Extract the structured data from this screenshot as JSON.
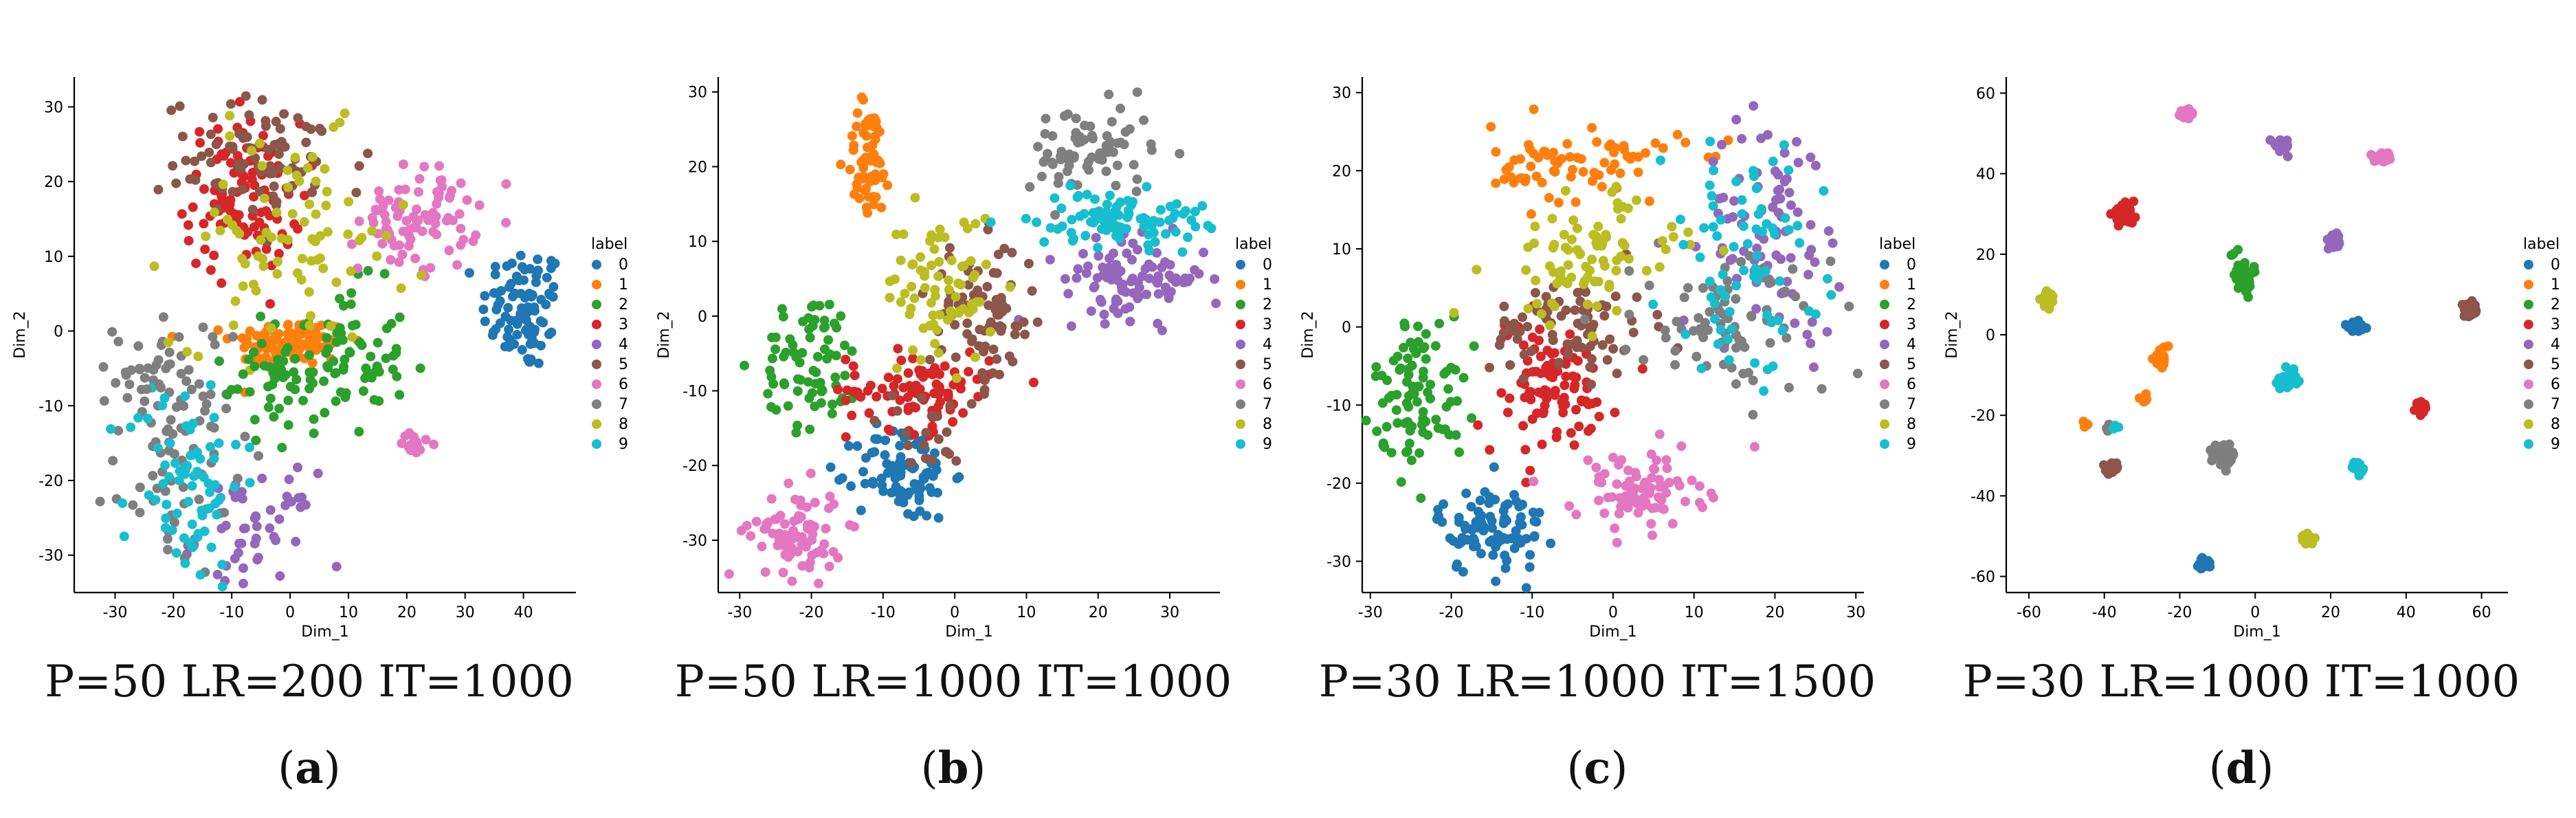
{
  "legend_title": "label",
  "palette": [
    "#1f77b4",
    "#ff7f0e",
    "#2ca02c",
    "#d62728",
    "#9467bd",
    "#8c564b",
    "#e377c2",
    "#7f7f7f",
    "#bcbd22",
    "#17becf"
  ],
  "chart_data": [
    {
      "type": "scatter",
      "caption": "P=50 LR=200 IT=1000",
      "letter": "a",
      "xlabel": "Dim_1",
      "ylabel": "Dim_2",
      "xlim": [
        -37,
        49
      ],
      "ylim": [
        -35,
        34
      ],
      "xticks": [
        -30,
        -20,
        -10,
        0,
        10,
        20,
        30,
        40
      ],
      "yticks": [
        -30,
        -20,
        -10,
        0,
        10,
        20,
        30
      ],
      "legend": [
        "0",
        "1",
        "2",
        "3",
        "4",
        "5",
        "6",
        "7",
        "8",
        "9"
      ],
      "clusters": [
        {
          "label": 0,
          "cx": 40,
          "cy": 3,
          "sx": 3.6,
          "sy": 4.2,
          "n": 90
        },
        {
          "label": 1,
          "cx": 0,
          "cy": -1.5,
          "sx": 5,
          "sy": 1.6,
          "n": 110
        },
        {
          "label": 2,
          "cx": 8,
          "cy": -4,
          "sx": 6,
          "sy": 5,
          "n": 90
        },
        {
          "label": 3,
          "cx": -8,
          "cy": 18,
          "sx": 5,
          "sy": 5,
          "n": 110
        },
        {
          "label": 4,
          "cx": -6,
          "cy": -27,
          "sx": 5,
          "sy": 4,
          "n": 55
        },
        {
          "label": 5,
          "cx": -4,
          "cy": 23,
          "sx": 9,
          "sy": 4,
          "n": 85
        },
        {
          "label": 6,
          "cx": 22,
          "cy": 15,
          "sx": 5,
          "sy": 3.5,
          "n": 85
        },
        {
          "label": 7,
          "cx": -20,
          "cy": -15,
          "sx": 5,
          "sy": 9,
          "n": 90
        },
        {
          "label": 8,
          "cx": 0,
          "cy": 12,
          "sx": 10,
          "sy": 7,
          "n": 85
        },
        {
          "label": 9,
          "cx": -18,
          "cy": -20,
          "sx": 5,
          "sy": 7,
          "n": 75
        },
        {
          "label": 6,
          "cx": 22,
          "cy": -15,
          "sx": 1.5,
          "sy": 1.2,
          "n": 14
        },
        {
          "label": 7,
          "cx": -25,
          "cy": -5,
          "sx": 2,
          "sy": 2,
          "n": 18
        },
        {
          "label": 2,
          "cx": -3,
          "cy": -8,
          "sx": 4,
          "sy": 3,
          "n": 25
        }
      ]
    },
    {
      "type": "scatter",
      "caption": "P=50 LR=1000 IT=1000",
      "letter": "b",
      "xlabel": "Dim_1",
      "ylabel": "Dim_2",
      "xlim": [
        -33,
        37
      ],
      "ylim": [
        -37,
        32
      ],
      "xticks": [
        -30,
        -20,
        -10,
        0,
        10,
        20,
        30
      ],
      "yticks": [
        -30,
        -20,
        -10,
        0,
        10,
        20,
        30
      ],
      "legend": [
        "0",
        "1",
        "2",
        "3",
        "4",
        "5",
        "6",
        "7",
        "8",
        "9"
      ],
      "clusters": [
        {
          "label": 0,
          "cx": -7,
          "cy": -21,
          "sx": 3.3,
          "sy": 3.2,
          "n": 90
        },
        {
          "label": 1,
          "cx": -12,
          "cy": 21,
          "sx": 1.6,
          "sy": 4,
          "n": 65
        },
        {
          "label": 2,
          "cx": -20,
          "cy": -6,
          "sx": 3.5,
          "sy": 4.5,
          "n": 75
        },
        {
          "label": 3,
          "cx": -5,
          "cy": -10,
          "sx": 5,
          "sy": 2.6,
          "n": 90
        },
        {
          "label": 4,
          "cx": 25,
          "cy": 5,
          "sx": 5,
          "sy": 2.6,
          "n": 100
        },
        {
          "label": 5,
          "cx": 4,
          "cy": 0,
          "sx": 3.8,
          "sy": 5,
          "n": 85
        },
        {
          "label": 6,
          "cx": -22,
          "cy": -29,
          "sx": 3.2,
          "sy": 3,
          "n": 80
        },
        {
          "label": 7,
          "cx": 19,
          "cy": 22,
          "sx": 4.3,
          "sy": 3.2,
          "n": 75
        },
        {
          "label": 8,
          "cx": -2,
          "cy": 4,
          "sx": 3.8,
          "sy": 5,
          "n": 75
        },
        {
          "label": 9,
          "cx": 23,
          "cy": 13,
          "sx": 6,
          "sy": 1.8,
          "n": 95
        },
        {
          "label": 5,
          "cx": -5,
          "cy": -15,
          "sx": 3,
          "sy": 3,
          "n": 20
        }
      ]
    },
    {
      "type": "scatter",
      "caption": "P=30 LR=1000 IT=1500",
      "letter": "c",
      "xlabel": "Dim_1",
      "ylabel": "Dim_2",
      "xlim": [
        -31,
        31
      ],
      "ylim": [
        -34,
        32
      ],
      "xticks": [
        -30,
        -20,
        -10,
        0,
        10,
        20,
        30
      ],
      "yticks": [
        -30,
        -20,
        -10,
        0,
        10,
        20,
        30
      ],
      "legend": [
        "0",
        "1",
        "2",
        "3",
        "4",
        "5",
        "6",
        "7",
        "8",
        "9"
      ],
      "clusters": [
        {
          "label": 0,
          "cx": -15,
          "cy": -26,
          "sx": 3.3,
          "sy": 2.8,
          "n": 95
        },
        {
          "label": 1,
          "cx": -3,
          "cy": 21,
          "sx": 6,
          "sy": 2.5,
          "n": 75
        },
        {
          "label": 2,
          "cx": -24,
          "cy": -8,
          "sx": 2.8,
          "sy": 4.8,
          "n": 90
        },
        {
          "label": 3,
          "cx": -8,
          "cy": -8,
          "sx": 4.2,
          "sy": 4.5,
          "n": 95
        },
        {
          "label": 4,
          "cx": 20,
          "cy": 13,
          "sx": 4.2,
          "sy": 7,
          "n": 85
        },
        {
          "label": 5,
          "cx": -5,
          "cy": 0,
          "sx": 5,
          "sy": 3.2,
          "n": 80
        },
        {
          "label": 6,
          "cx": 3,
          "cy": -21,
          "sx": 4,
          "sy": 2.6,
          "n": 85
        },
        {
          "label": 7,
          "cx": 15,
          "cy": 0,
          "sx": 6,
          "sy": 4.5,
          "n": 80
        },
        {
          "label": 8,
          "cx": -3,
          "cy": 9,
          "sx": 5.5,
          "sy": 4.2,
          "n": 85
        },
        {
          "label": 9,
          "cx": 16,
          "cy": 9,
          "sx": 5,
          "sy": 7,
          "n": 75
        }
      ]
    },
    {
      "type": "scatter",
      "caption": "P=30 LR=1000 IT=1000",
      "letter": "d",
      "xlabel": "Dim_1",
      "ylabel": "Dim_2",
      "xlim": [
        -66,
        67
      ],
      "ylim": [
        -64,
        64
      ],
      "xticks": [
        -60,
        -40,
        -20,
        0,
        20,
        40,
        60
      ],
      "yticks": [
        -60,
        -40,
        -20,
        0,
        20,
        40,
        60
      ],
      "legend": [
        "0",
        "1",
        "2",
        "3",
        "4",
        "5",
        "6",
        "7",
        "8",
        "9"
      ],
      "clusters": [
        {
          "label": 0,
          "cx": 27,
          "cy": 2,
          "sx": 1.1,
          "sy": 0.6,
          "n": 50
        },
        {
          "label": 0,
          "cx": -14,
          "cy": -57,
          "sx": 0.8,
          "sy": 0.8,
          "n": 30
        },
        {
          "label": 1,
          "cx": -25,
          "cy": -6,
          "sx": 1.0,
          "sy": 1.4,
          "n": 35
        },
        {
          "label": 1,
          "cx": -29,
          "cy": -16,
          "sx": 0.8,
          "sy": 0.8,
          "n": 6
        },
        {
          "label": 1,
          "cx": -45,
          "cy": -22,
          "sx": 0.5,
          "sy": 0.5,
          "n": 3
        },
        {
          "label": 2,
          "cx": -3,
          "cy": 14,
          "sx": 1.3,
          "sy": 1.5,
          "n": 55
        },
        {
          "label": 2,
          "cx": -6,
          "cy": 21,
          "sx": 0.6,
          "sy": 0.6,
          "n": 4
        },
        {
          "label": 3,
          "cx": -35,
          "cy": 30,
          "sx": 1.5,
          "sy": 1.1,
          "n": 55
        },
        {
          "label": 3,
          "cx": 44,
          "cy": -18,
          "sx": 0.7,
          "sy": 0.7,
          "n": 25
        },
        {
          "label": 4,
          "cx": 7,
          "cy": 47,
          "sx": 1.0,
          "sy": 0.8,
          "n": 35
        },
        {
          "label": 4,
          "cx": 21,
          "cy": 23,
          "sx": 0.8,
          "sy": 0.9,
          "n": 30
        },
        {
          "label": 5,
          "cx": 57,
          "cy": 6,
          "sx": 1.2,
          "sy": 0.8,
          "n": 35
        },
        {
          "label": 5,
          "cx": -38,
          "cy": -33,
          "sx": 0.8,
          "sy": 0.7,
          "n": 25
        },
        {
          "label": 6,
          "cx": -18,
          "cy": 55,
          "sx": 0.9,
          "sy": 0.5,
          "n": 30
        },
        {
          "label": 6,
          "cx": 34,
          "cy": 44,
          "sx": 1.3,
          "sy": 0.6,
          "n": 40
        },
        {
          "label": 7,
          "cx": -8,
          "cy": -30,
          "sx": 1.3,
          "sy": 1.1,
          "n": 55
        },
        {
          "label": 7,
          "cx": -39,
          "cy": -23,
          "sx": 0.5,
          "sy": 0.5,
          "n": 4
        },
        {
          "label": 8,
          "cx": -55,
          "cy": 9,
          "sx": 0.9,
          "sy": 1.0,
          "n": 40
        },
        {
          "label": 8,
          "cx": 14,
          "cy": -51,
          "sx": 0.8,
          "sy": 0.6,
          "n": 25
        },
        {
          "label": 9,
          "cx": 9,
          "cy": -11,
          "sx": 1.0,
          "sy": 1.0,
          "n": 40
        },
        {
          "label": 9,
          "cx": 27,
          "cy": -33,
          "sx": 0.7,
          "sy": 0.7,
          "n": 25
        },
        {
          "label": 9,
          "cx": -37,
          "cy": -23,
          "sx": 0.4,
          "sy": 0.4,
          "n": 4
        }
      ]
    }
  ]
}
